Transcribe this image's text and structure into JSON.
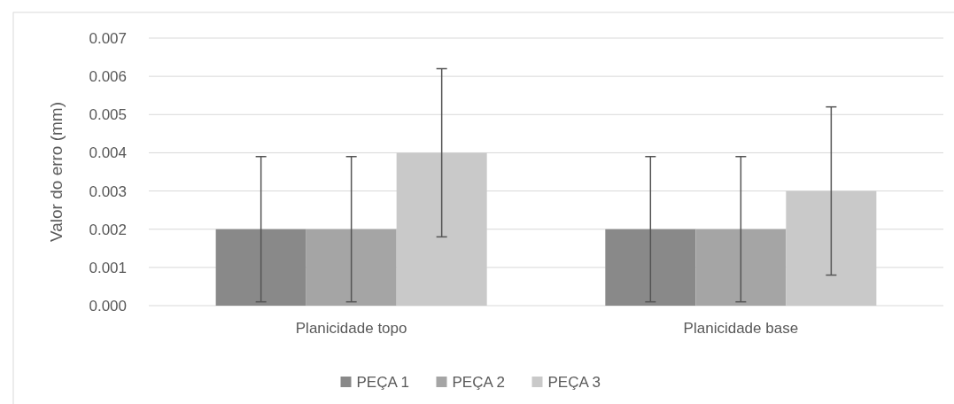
{
  "chart_data": {
    "type": "bar",
    "ylabel": "Valor do erro (mm)",
    "categories": [
      "Planicidade topo",
      "Planicidade base"
    ],
    "series": [
      {
        "name": "PEÇA 1",
        "color": "#898989",
        "values": [
          0.002,
          0.002
        ],
        "errors": [
          0.0019,
          0.0019
        ]
      },
      {
        "name": "PEÇA 2",
        "color": "#a5a5a5",
        "values": [
          0.002,
          0.002
        ],
        "errors": [
          0.0019,
          0.0019
        ]
      },
      {
        "name": "PEÇA 3",
        "color": "#c9c9c9",
        "values": [
          0.004,
          0.003
        ],
        "errors": [
          0.0022,
          0.0022
        ]
      }
    ],
    "ylim": [
      0,
      0.007
    ],
    "yticks": [
      {
        "value": 0,
        "label": "0.000"
      },
      {
        "value": 0.001,
        "label": "0.001"
      },
      {
        "value": 0.002,
        "label": "0.002"
      },
      {
        "value": 0.003,
        "label": "0.003"
      },
      {
        "value": 0.004,
        "label": "0.004"
      },
      {
        "value": 0.005,
        "label": "0.005"
      },
      {
        "value": 0.006,
        "label": "0.006"
      },
      {
        "value": 0.007,
        "label": "0.007"
      }
    ],
    "grid": "y",
    "legend": "bottom"
  }
}
